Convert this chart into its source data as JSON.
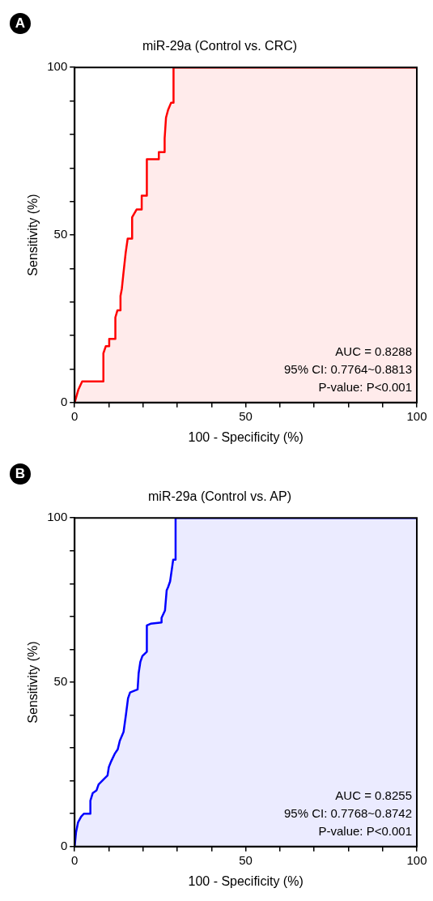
{
  "chart_data": [
    {
      "type": "area",
      "title": "miR-29a (Control vs. CRC)",
      "xlabel": "100 - Specificity (%)",
      "ylabel": "Sensitivity (%)",
      "xlim": [
        0,
        100
      ],
      "ylim": [
        0,
        100
      ],
      "xticks": [
        0,
        {
          "value": 10,
          "label": null
        },
        {
          "value": 20,
          "label": null
        },
        {
          "value": 30,
          "label": null
        },
        {
          "value": 40,
          "label": null
        },
        50,
        {
          "value": 60,
          "label": null
        },
        {
          "value": 70,
          "label": null
        },
        {
          "value": 80,
          "label": null
        },
        {
          "value": 90,
          "label": null
        },
        100
      ],
      "yticks": [
        0,
        {
          "value": 10,
          "label": null
        },
        {
          "value": 20,
          "label": null
        },
        {
          "value": 30,
          "label": null
        },
        {
          "value": 40,
          "label": null
        },
        50,
        {
          "value": 60,
          "label": null
        },
        {
          "value": 70,
          "label": null
        },
        {
          "value": 80,
          "label": null
        },
        {
          "value": 90,
          "label": null
        },
        100
      ],
      "grid": false,
      "legend": false,
      "series": [
        {
          "color": "#ff0000",
          "x": [
            0,
            1.1,
            2.2,
            8.4,
            8.4,
            9.1,
            10.1,
            10.1,
            11.9,
            11.9,
            12.5,
            13.4,
            13.4,
            13.8,
            14.2,
            14.9,
            15.5,
            16.8,
            16.8,
            18.1,
            19.6,
            19.6,
            21.1,
            21.1,
            24.6,
            24.6,
            26.3,
            26.3,
            26.7,
            27.3,
            28.2,
            28.9,
            28.9,
            100
          ],
          "values": [
            0,
            3.9,
            6.3,
            6.3,
            14.7,
            16.8,
            16.8,
            19,
            19,
            25.4,
            27.5,
            27.5,
            31.8,
            34,
            38,
            44.6,
            48.9,
            48.9,
            55.3,
            57.6,
            57.6,
            61.7,
            61.7,
            72.6,
            72.6,
            74.7,
            74.7,
            78.8,
            85,
            87.3,
            89.5,
            89.5,
            100,
            100
          ]
        }
      ],
      "annotations": [
        "A",
        "AUC = 0.8288",
        "95% CI: 0.7764~0.8813",
        "P-value: P<0.001"
      ]
    },
    {
      "type": "area",
      "title": "miR-29a (Control vs. AP)",
      "xlabel": "100 - Specificity (%)",
      "ylabel": "Sensitivity (%)",
      "xlim": [
        0,
        100
      ],
      "ylim": [
        0,
        100
      ],
      "xticks": [
        0,
        {
          "value": 10,
          "label": null
        },
        {
          "value": 20,
          "label": null
        },
        {
          "value": 30,
          "label": null
        },
        {
          "value": 40,
          "label": null
        },
        50,
        {
          "value": 60,
          "label": null
        },
        {
          "value": 70,
          "label": null
        },
        {
          "value": 80,
          "label": null
        },
        {
          "value": 90,
          "label": null
        },
        100
      ],
      "yticks": [
        0,
        {
          "value": 10,
          "label": null
        },
        {
          "value": 20,
          "label": null
        },
        {
          "value": 30,
          "label": null
        },
        {
          "value": 40,
          "label": null
        },
        50,
        {
          "value": 60,
          "label": null
        },
        {
          "value": 70,
          "label": null
        },
        {
          "value": 80,
          "label": null
        },
        {
          "value": 90,
          "label": null
        },
        100
      ],
      "grid": false,
      "legend": false,
      "series": [
        {
          "color": "#0000ff",
          "x": [
            0,
            0.4,
            1,
            1.9,
            2.7,
            4.6,
            4.6,
            5.3,
            6.4,
            7,
            8.7,
            9.6,
            10,
            10.7,
            11.7,
            12.6,
            13.2,
            14.3,
            15,
            15.6,
            16.2,
            18.4,
            18.7,
            19.2,
            19.8,
            21.1,
            21.1,
            22.2,
            25.4,
            25.4,
            26.4,
            26.9,
            27.3,
            27.9,
            28.8,
            29.5,
            29.5,
            100
          ],
          "values": [
            0,
            4.3,
            7.4,
            9.1,
            10,
            10,
            14,
            16.3,
            17.1,
            18.9,
            20.7,
            21.6,
            24.2,
            26,
            28.2,
            29.6,
            32.2,
            34.9,
            40.2,
            45.1,
            46.9,
            47.8,
            52.7,
            56.2,
            58,
            59.3,
            67.3,
            67.8,
            68.2,
            69.6,
            71.8,
            78,
            78.9,
            80.7,
            87.3,
            87.3,
            100,
            100
          ]
        }
      ],
      "annotations": [
        "B",
        "AUC = 0.8255",
        "95% CI: 0.7768~0.8742",
        "P-value: P<0.001"
      ]
    }
  ]
}
